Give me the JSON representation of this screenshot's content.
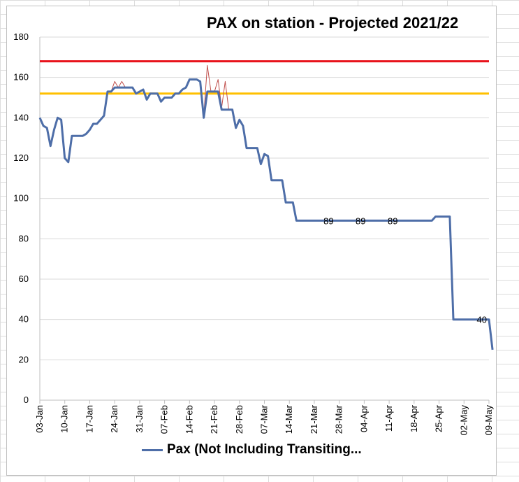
{
  "chart_data": {
    "type": "line",
    "title": "PAX on station - Projected 2021/22",
    "xlabel": "",
    "ylabel": "",
    "ylim": [
      0,
      180
    ],
    "yticks": [
      0,
      20,
      40,
      60,
      80,
      100,
      120,
      140,
      160,
      180
    ],
    "xticks": [
      "03-Jan",
      "10-Jan",
      "17-Jan",
      "24-Jan",
      "31-Jan",
      "07-Feb",
      "14-Feb",
      "21-Feb",
      "28-Feb",
      "07-Mar",
      "14-Mar",
      "21-Mar",
      "28-Mar",
      "04-Apr",
      "11-Apr",
      "18-Apr",
      "25-Apr",
      "02-May",
      "09-May"
    ],
    "grid": true,
    "legend_position": "bottom",
    "reference_lines": [
      {
        "value": 168,
        "color": "#e8131b"
      },
      {
        "value": 152,
        "color": "#ffc000"
      }
    ],
    "series": [
      {
        "name": "Pax (Not Including Transiting...",
        "color": "#4e6ea8",
        "points": [
          [
            0,
            140
          ],
          [
            1,
            136
          ],
          [
            2,
            135
          ],
          [
            3,
            126
          ],
          [
            4,
            134
          ],
          [
            5,
            140
          ],
          [
            6,
            139
          ],
          [
            7,
            120
          ],
          [
            8,
            118
          ],
          [
            9,
            131
          ],
          [
            10,
            131
          ],
          [
            11,
            131
          ],
          [
            12,
            131
          ],
          [
            13,
            132
          ],
          [
            14,
            134
          ],
          [
            15,
            137
          ],
          [
            16,
            137
          ],
          [
            17,
            139
          ],
          [
            18,
            141
          ],
          [
            19,
            153
          ],
          [
            20,
            153
          ],
          [
            21,
            155
          ],
          [
            22,
            155
          ],
          [
            23,
            155
          ],
          [
            24,
            155
          ],
          [
            25,
            155
          ],
          [
            26,
            155
          ],
          [
            27,
            152
          ],
          [
            28,
            153
          ],
          [
            29,
            154
          ],
          [
            30,
            149
          ],
          [
            31,
            152
          ],
          [
            32,
            152
          ],
          [
            33,
            152
          ],
          [
            34,
            148
          ],
          [
            35,
            150
          ],
          [
            36,
            150
          ],
          [
            37,
            150
          ],
          [
            38,
            152
          ],
          [
            39,
            152
          ],
          [
            40,
            154
          ],
          [
            41,
            155
          ],
          [
            42,
            159
          ],
          [
            43,
            159
          ],
          [
            44,
            159
          ],
          [
            45,
            158
          ],
          [
            46,
            140
          ],
          [
            47,
            153
          ],
          [
            48,
            153
          ],
          [
            49,
            153
          ],
          [
            50,
            153
          ],
          [
            51,
            144
          ],
          [
            52,
            144
          ],
          [
            53,
            144
          ],
          [
            54,
            144
          ],
          [
            55,
            135
          ],
          [
            56,
            139
          ],
          [
            57,
            136
          ],
          [
            58,
            125
          ],
          [
            59,
            125
          ],
          [
            60,
            125
          ],
          [
            61,
            125
          ],
          [
            62,
            117
          ],
          [
            63,
            122
          ],
          [
            64,
            121
          ],
          [
            65,
            109
          ],
          [
            66,
            109
          ],
          [
            67,
            109
          ],
          [
            68,
            109
          ],
          [
            69,
            98
          ],
          [
            70,
            98
          ],
          [
            71,
            98
          ],
          [
            72,
            89
          ],
          [
            73,
            89
          ],
          [
            80,
            89
          ],
          [
            90,
            89
          ],
          [
            100,
            89
          ],
          [
            110,
            89
          ],
          [
            111,
            91
          ],
          [
            112,
            91
          ],
          [
            113,
            91
          ],
          [
            114,
            91
          ],
          [
            115,
            91
          ],
          [
            116,
            40
          ],
          [
            120,
            40
          ],
          [
            125,
            40
          ],
          [
            126,
            40
          ],
          [
            127,
            25
          ]
        ]
      },
      {
        "name": "",
        "color": "#c0504d",
        "points": [
          [
            19,
            153
          ],
          [
            20,
            153
          ],
          [
            21,
            158
          ],
          [
            22,
            155
          ],
          [
            23,
            158
          ],
          [
            24,
            155
          ],
          [
            25,
            155
          ],
          [
            26,
            155
          ],
          [
            27,
            152
          ],
          [
            28,
            153
          ],
          [
            29,
            154
          ],
          [
            30,
            149
          ],
          [
            31,
            152
          ],
          [
            32,
            152
          ],
          [
            33,
            152
          ],
          [
            34,
            148
          ],
          [
            35,
            150
          ],
          [
            36,
            150
          ],
          [
            37,
            150
          ],
          [
            38,
            152
          ],
          [
            39,
            152
          ],
          [
            40,
            154
          ],
          [
            41,
            155
          ],
          [
            42,
            159
          ],
          [
            43,
            159
          ],
          [
            44,
            159
          ],
          [
            45,
            158
          ],
          [
            46,
            141
          ],
          [
            47,
            166
          ],
          [
            48,
            153
          ],
          [
            49,
            153
          ],
          [
            50,
            159
          ],
          [
            51,
            145
          ],
          [
            52,
            158
          ],
          [
            53,
            144
          ],
          [
            54,
            144
          ]
        ]
      }
    ],
    "data_labels": [
      {
        "x": 81,
        "y": 89,
        "text": "89"
      },
      {
        "x": 90,
        "y": 89,
        "text": "89"
      },
      {
        "x": 99,
        "y": 89,
        "text": "89"
      },
      {
        "x": 124,
        "y": 40,
        "text": "40"
      }
    ]
  },
  "legend": {
    "label": "Pax (Not Including Transiting..."
  }
}
